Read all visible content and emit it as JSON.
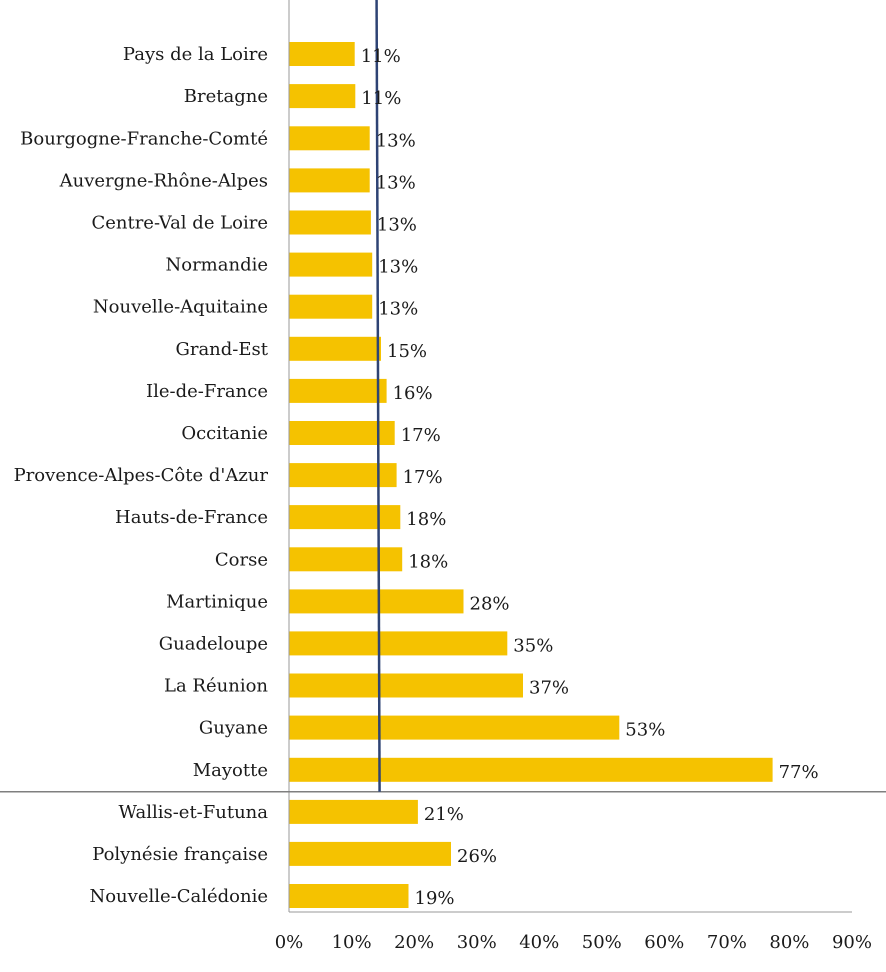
{
  "chart_data": {
    "type": "bar",
    "orientation": "horizontal",
    "categories": [
      "Pays de la Loire",
      "Bretagne",
      "Bourgogne-Franche-Comté",
      "Auvergne-Rhône-Alpes",
      "Centre-Val de Loire",
      "Normandie",
      "Nouvelle-Aquitaine",
      "Grand-Est",
      "Ile-de-France",
      "Occitanie",
      "Provence-Alpes-Côte d'Azur",
      "Hauts-de-France",
      "Corse",
      "Martinique",
      "Guadeloupe",
      "La Réunion",
      "Guyane",
      "Mayotte",
      "Wallis-et-Futuna",
      "Polynésie française",
      "Nouvelle-Calédonie"
    ],
    "values": [
      10.5,
      10.6,
      12.9,
      12.9,
      13.1,
      13.3,
      13.3,
      14.7,
      15.6,
      16.9,
      17.2,
      17.8,
      18.1,
      27.9,
      34.9,
      37.4,
      52.8,
      77.3,
      20.6,
      25.9,
      19.1
    ],
    "value_labels": [
      "11%",
      "11%",
      "13%",
      "13%",
      "13%",
      "13%",
      "13%",
      "15%",
      "16%",
      "17%",
      "17%",
      "18%",
      "18%",
      "28%",
      "35%",
      "37%",
      "53%",
      "77%",
      "21%",
      "26%",
      "19%"
    ],
    "reference_line": 14,
    "group_separator_after": "Mayotte",
    "xlim": [
      0,
      90
    ],
    "xticks": [
      "0%",
      "10%",
      "20%",
      "30%",
      "40%",
      "50%",
      "60%",
      "70%",
      "80%",
      "90%"
    ],
    "bar_color": "#F5C200",
    "reference_line_color": "#2E4374",
    "title": "",
    "xlabel": "",
    "ylabel": "",
    "grid": false,
    "legend": "none"
  }
}
